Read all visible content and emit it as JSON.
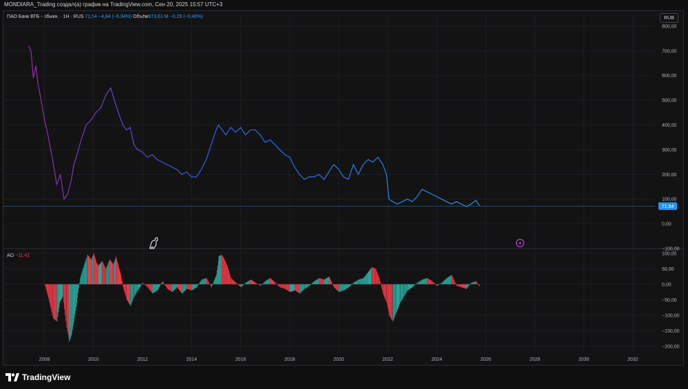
{
  "header": {
    "title": "MONDIARA_Trading создал(а) график на TradingView.com, Сен 20, 2025 15:57 UTC+3"
  },
  "legend": {
    "symbol": "ПАО Банк ВТБ - обыкн. · 1Н · RUS",
    "price": "71,54",
    "change": "−4,84 (−6,34%)",
    "volume_label": "Объём",
    "volume_value": "973,61 M",
    "volume_change": "−0,29 (−0,40%)"
  },
  "currency_button": "RUB",
  "price_label": "71,54",
  "indicator": {
    "name": "AO",
    "value": "−11,41"
  },
  "brand": "TradingView",
  "colors": {
    "line_start": "#9c27b0",
    "line_end": "#2196f3",
    "ao_up": "#26a69a",
    "ao_down": "#f23645",
    "price_tag": "#2196f3"
  },
  "icons": [
    "dino-icon",
    "lightning-icon",
    "tradingview-logo-icon"
  ],
  "chart_data": [
    {
      "type": "line",
      "x_ticks": [
        "2008",
        "2010",
        "2012",
        "2014",
        "2016",
        "2018",
        "2020",
        "2022",
        "2024",
        "2026",
        "2028",
        "2030",
        "2032"
      ],
      "y_ticks": [
        "800,00",
        "700,00",
        "600,00",
        "500,00",
        "400,00",
        "300,00",
        "200,00",
        "100,00",
        "0,00",
        "−100,00"
      ],
      "ylim": [
        -100,
        850
      ],
      "xlim": [
        2006.3,
        2032.9
      ],
      "last_value": 71.54,
      "series": [
        {
          "x": [
            2007.35,
            2007.45,
            2007.55,
            2007.65,
            2007.75,
            2007.9,
            2008.0,
            2008.1,
            2008.2,
            2008.35,
            2008.5,
            2008.65,
            2008.8,
            2008.95,
            2009.0,
            2009.1,
            2009.2,
            2009.3,
            2009.5,
            2009.7,
            2009.9,
            2010.1,
            2010.3,
            2010.5,
            2010.7,
            2010.85,
            2010.95,
            2011.05,
            2011.2,
            2011.35,
            2011.5,
            2011.65,
            2011.8,
            2012.0,
            2012.2,
            2012.4,
            2012.6,
            2012.8,
            2013.0,
            2013.2,
            2013.4,
            2013.6,
            2013.8,
            2014.0,
            2014.2,
            2014.4,
            2014.6,
            2014.8,
            2015.0,
            2015.1,
            2015.25,
            2015.4,
            2015.6,
            2015.8,
            2016.0,
            2016.2,
            2016.4,
            2016.6,
            2016.8,
            2017.0,
            2017.2,
            2017.4,
            2017.6,
            2017.8,
            2018.0,
            2018.2,
            2018.4,
            2018.6,
            2018.8,
            2019.0,
            2019.2,
            2019.4,
            2019.6,
            2019.8,
            2020.0,
            2020.2,
            2020.4,
            2020.6,
            2020.8,
            2021.0,
            2021.2,
            2021.4,
            2021.6,
            2021.8,
            2021.95,
            2022.05,
            2022.2,
            2022.4,
            2022.6,
            2022.8,
            2023.0,
            2023.2,
            2023.4,
            2023.6,
            2023.8,
            2024.0,
            2024.2,
            2024.4,
            2024.6,
            2024.8,
            2025.0,
            2025.2,
            2025.4,
            2025.6,
            2025.75
          ],
          "y": [
            720,
            700,
            590,
            640,
            560,
            480,
            420,
            380,
            330,
            250,
            160,
            200,
            100,
            120,
            140,
            180,
            240,
            270,
            340,
            400,
            420,
            450,
            470,
            520,
            550,
            500,
            470,
            440,
            400,
            380,
            390,
            320,
            300,
            290,
            270,
            280,
            260,
            250,
            240,
            230,
            220,
            200,
            210,
            190,
            190,
            220,
            260,
            320,
            380,
            400,
            380,
            360,
            390,
            370,
            390,
            360,
            380,
            380,
            360,
            330,
            340,
            320,
            300,
            280,
            270,
            230,
            200,
            180,
            190,
            190,
            200,
            180,
            210,
            240,
            220,
            190,
            180,
            240,
            200,
            240,
            260,
            250,
            270,
            240,
            200,
            100,
            90,
            80,
            90,
            100,
            90,
            110,
            140,
            130,
            120,
            110,
            100,
            90,
            80,
            90,
            80,
            70,
            80,
            95,
            72
          ]
        }
      ]
    },
    {
      "type": "bar",
      "name": "AO",
      "y_ticks": [
        "100,00",
        "50,00",
        "0,00",
        "−50,00",
        "−100,00",
        "−150,00",
        "−200,00"
      ],
      "ylim": [
        -220,
        115
      ],
      "last_value": -11.41,
      "x": [
        2008.0,
        2008.1,
        2008.2,
        2008.35,
        2008.5,
        2008.6,
        2008.75,
        2008.9,
        2009.0,
        2009.1,
        2009.2,
        2009.3,
        2009.45,
        2009.6,
        2009.75,
        2009.9,
        2010.0,
        2010.1,
        2010.2,
        2010.35,
        2010.5,
        2010.65,
        2010.8,
        2010.9,
        2011.0,
        2011.1,
        2011.2,
        2011.35,
        2011.5,
        2011.65,
        2011.8,
        2012.0,
        2012.2,
        2012.4,
        2012.6,
        2012.8,
        2013.0,
        2013.2,
        2013.4,
        2013.6,
        2013.8,
        2014.0,
        2014.2,
        2014.4,
        2014.6,
        2014.8,
        2015.0,
        2015.1,
        2015.2,
        2015.3,
        2015.45,
        2015.6,
        2015.8,
        2016.0,
        2016.2,
        2016.4,
        2016.6,
        2016.8,
        2017.0,
        2017.2,
        2017.4,
        2017.6,
        2017.8,
        2018.0,
        2018.2,
        2018.4,
        2018.6,
        2018.8,
        2019.0,
        2019.2,
        2019.4,
        2019.6,
        2019.8,
        2020.0,
        2020.2,
        2020.4,
        2020.6,
        2020.8,
        2021.0,
        2021.2,
        2021.35,
        2021.5,
        2021.65,
        2021.8,
        2021.95,
        2022.05,
        2022.2,
        2022.35,
        2022.5,
        2022.65,
        2022.8,
        2023.0,
        2023.2,
        2023.4,
        2023.6,
        2023.8,
        2024.0,
        2024.2,
        2024.4,
        2024.6,
        2024.8,
        2025.0,
        2025.2,
        2025.4,
        2025.6,
        2025.75
      ],
      "values": [
        0,
        -30,
        -60,
        -110,
        -120,
        -60,
        -40,
        -140,
        -185,
        -160,
        -110,
        -60,
        20,
        60,
        95,
        80,
        100,
        70,
        60,
        75,
        50,
        80,
        65,
        90,
        60,
        30,
        -10,
        -50,
        -70,
        -40,
        -20,
        5,
        -10,
        -30,
        -20,
        10,
        -15,
        -25,
        -10,
        -30,
        -15,
        -20,
        -10,
        15,
        20,
        -10,
        30,
        90,
        95,
        85,
        60,
        20,
        5,
        -10,
        5,
        15,
        5,
        -5,
        10,
        20,
        5,
        -10,
        -15,
        -25,
        -20,
        -30,
        -15,
        -5,
        10,
        20,
        15,
        25,
        -10,
        -25,
        -20,
        -10,
        5,
        15,
        20,
        40,
        55,
        50,
        20,
        -30,
        -60,
        -100,
        -120,
        -90,
        -60,
        -40,
        -20,
        -10,
        5,
        15,
        20,
        10,
        -5,
        5,
        20,
        30,
        -5,
        -10,
        -15,
        5,
        10,
        -11
      ]
    }
  ]
}
